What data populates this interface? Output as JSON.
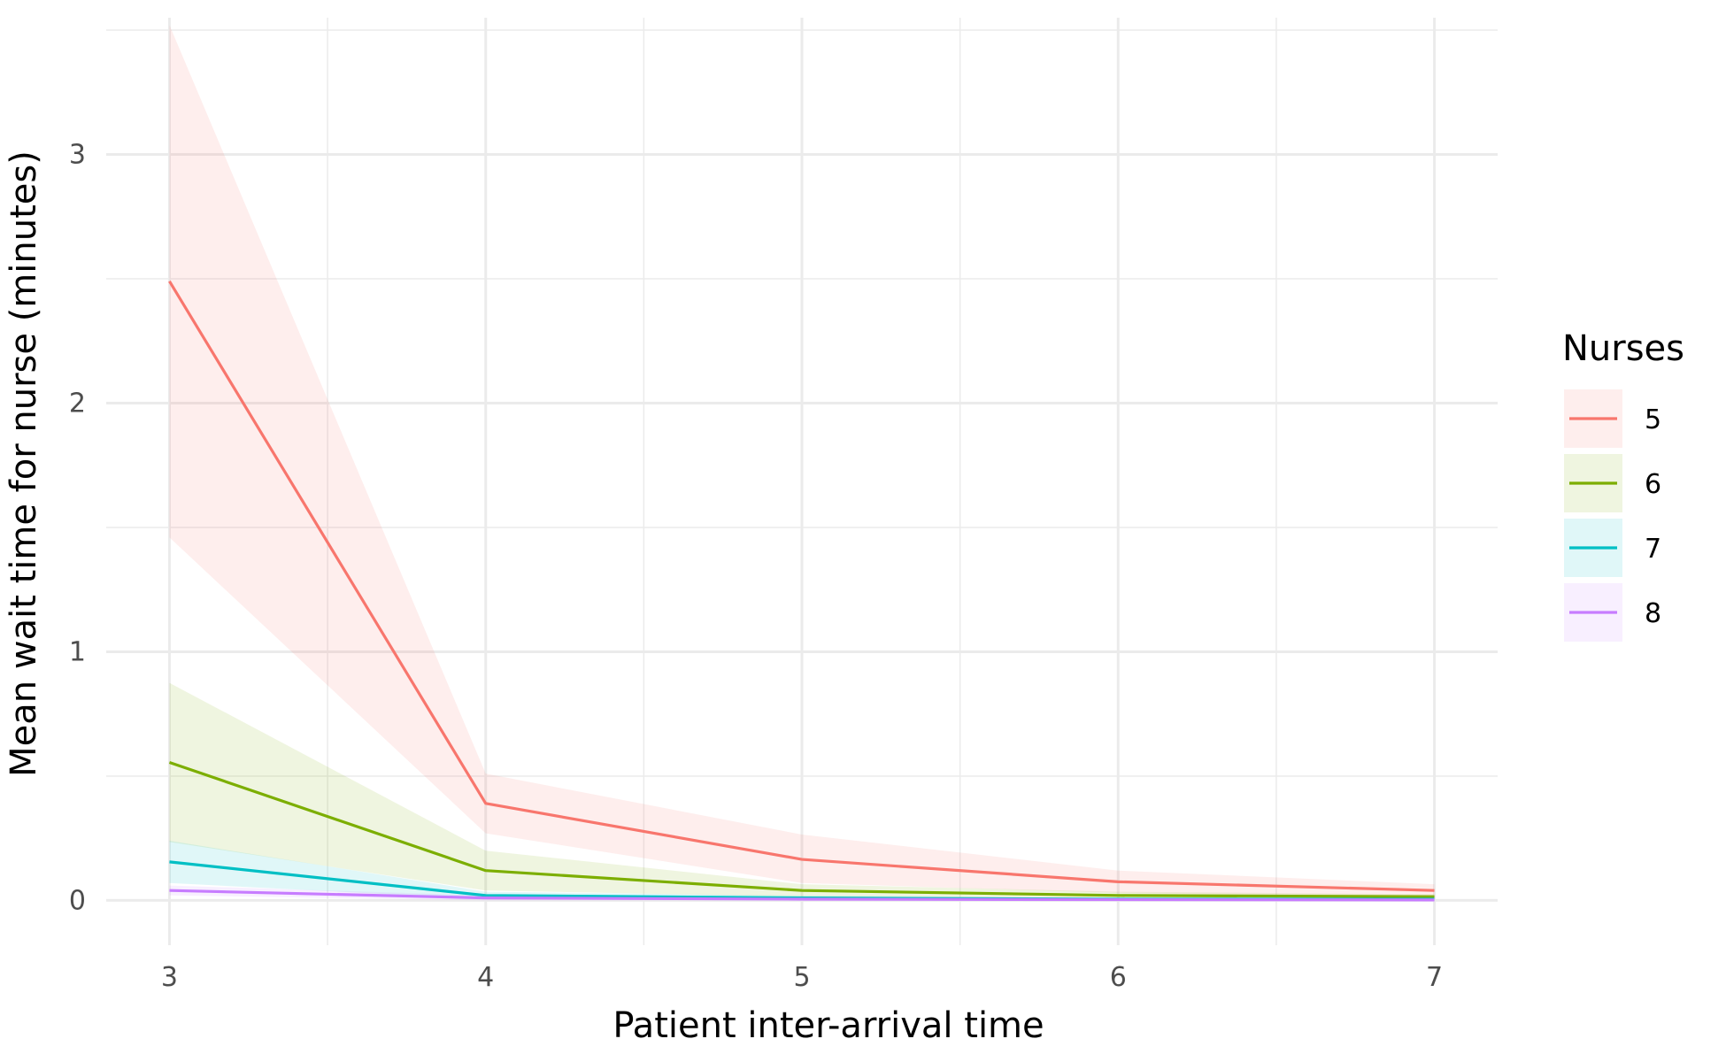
{
  "chart_data": {
    "type": "line",
    "title": "",
    "xlabel": "Patient inter-arrival time",
    "ylabel": "Mean wait time for nurse (minutes)",
    "x": [
      3,
      4,
      5,
      6,
      7
    ],
    "xlim": [
      2.8,
      7.2
    ],
    "ylim": [
      -0.18,
      3.55
    ],
    "xticks": [
      3,
      4,
      5,
      6,
      7
    ],
    "xtick_labels": [
      "3",
      "4",
      "5",
      "6",
      "7"
    ],
    "yticks": [
      0,
      1,
      2,
      3
    ],
    "ytick_labels": [
      "0",
      "1",
      "2",
      "3"
    ],
    "grid": true,
    "legend": {
      "title": "Nurses",
      "position": "right"
    },
    "series": [
      {
        "name": "5",
        "color": "#F8766D",
        "values": [
          2.49,
          0.39,
          0.165,
          0.075,
          0.04
        ],
        "lower": [
          1.46,
          0.27,
          0.07,
          0.03,
          0.015
        ],
        "upper": [
          3.52,
          0.51,
          0.265,
          0.12,
          0.065
        ]
      },
      {
        "name": "6",
        "color": "#7CAE00",
        "values": [
          0.555,
          0.12,
          0.04,
          0.02,
          0.015
        ],
        "lower": [
          0.235,
          0.04,
          0.015,
          0.005,
          0.005
        ],
        "upper": [
          0.875,
          0.2,
          0.065,
          0.035,
          0.025
        ]
      },
      {
        "name": "7",
        "color": "#00BFC4",
        "values": [
          0.155,
          0.02,
          0.01,
          0.005,
          0.005
        ],
        "lower": [
          0.07,
          0.005,
          0.0,
          0.0,
          0.0
        ],
        "upper": [
          0.24,
          0.035,
          0.02,
          0.01,
          0.01
        ]
      },
      {
        "name": "8",
        "color": "#C77CFF",
        "values": [
          0.04,
          0.01,
          0.005,
          0.003,
          0.002
        ],
        "lower": [
          0.02,
          0.0,
          0.0,
          0.0,
          0.0
        ],
        "upper": [
          0.06,
          0.02,
          0.01,
          0.006,
          0.004
        ]
      }
    ]
  }
}
